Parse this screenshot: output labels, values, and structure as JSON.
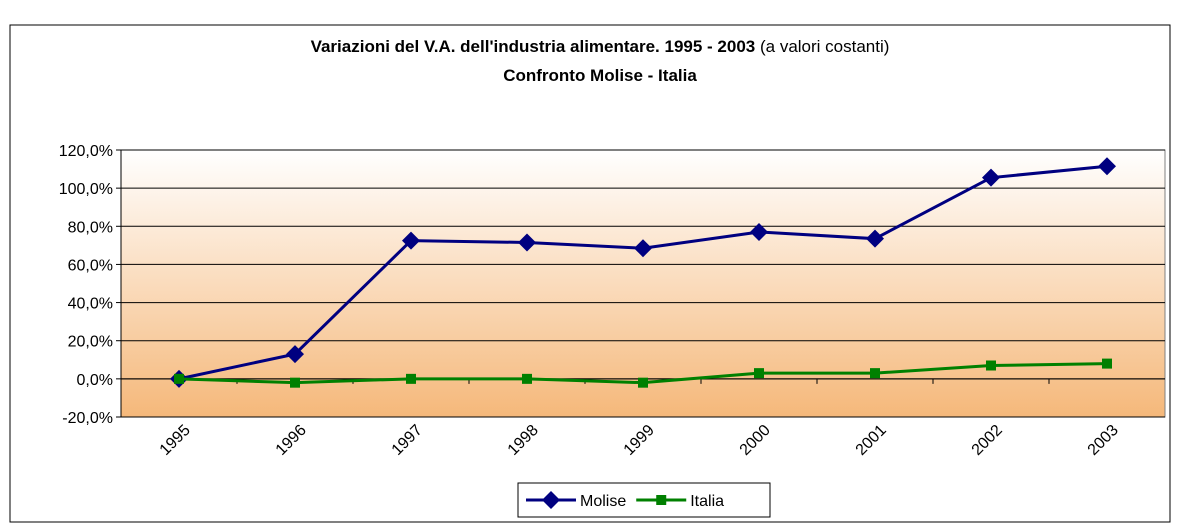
{
  "chart_data": {
    "type": "line",
    "title": "Variazioni del V.A. dell'industria alimentare. 1995 - 2003",
    "title_note": "(a valori costanti)",
    "subtitle": "Confronto Molise - Italia",
    "categories": [
      "1995",
      "1996",
      "1997",
      "1998",
      "1999",
      "2000",
      "2001",
      "2002",
      "2003"
    ],
    "series": [
      {
        "name": "Molise",
        "color": "#000080",
        "marker": "diamond",
        "values": [
          0,
          13,
          72.5,
          71.5,
          68.5,
          77,
          73.5,
          105.5,
          111.5
        ]
      },
      {
        "name": "Italia",
        "color": "#008000",
        "marker": "square",
        "values": [
          0,
          -2,
          0,
          0,
          -2,
          3,
          3,
          7,
          8
        ]
      }
    ],
    "ylim": [
      -20,
      120
    ],
    "yticks": [
      {
        "value": -20,
        "label": "-20,0%"
      },
      {
        "value": 0,
        "label": "0,0%"
      },
      {
        "value": 20,
        "label": "20,0%"
      },
      {
        "value": 40,
        "label": "40,0%"
      },
      {
        "value": 60,
        "label": "60,0%"
      },
      {
        "value": 80,
        "label": "80,0%"
      },
      {
        "value": 100,
        "label": "100,0%"
      },
      {
        "value": 120,
        "label": "120,0%"
      }
    ],
    "grid": true,
    "legend": "bottom"
  }
}
